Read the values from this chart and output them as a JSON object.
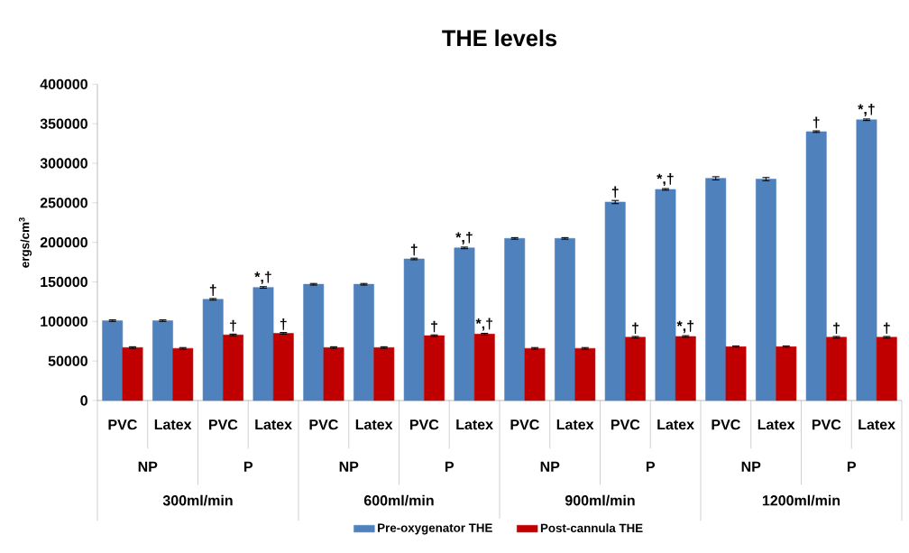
{
  "chart_data": {
    "type": "bar",
    "title": "THE levels",
    "ylabel": "ergs/cm$^{3}$",
    "categories": [
      "PVC",
      "Latex",
      "PVC",
      "Latex",
      "PVC",
      "Latex",
      "PVC",
      "Latex",
      "PVC",
      "Latex",
      "PVC",
      "Latex",
      "PVC",
      "Latex",
      "PVC",
      "Latex"
    ],
    "annotations": [
      "NP",
      "P",
      "NP",
      "P",
      "NP",
      "P",
      "NP",
      "P",
      "300ml/min",
      "600ml/min",
      "900ml/min",
      "1200ml/min"
    ],
    "series": [
      {
        "name": "Pre-oxygenator THE",
        "color": "#4f81bd",
        "values": [
          101000,
          101000,
          128000,
          143000,
          147000,
          147000,
          179000,
          193000,
          205000,
          205000,
          251000,
          267000,
          281000,
          280000,
          340000,
          355000
        ],
        "errors": [
          1000,
          1000,
          1000,
          1000,
          1000,
          1000,
          1000,
          1000,
          1000,
          1000,
          2000,
          1000,
          2000,
          2000,
          1000,
          1000
        ],
        "value_labels": [
          null,
          null,
          "†",
          "*,†",
          null,
          null,
          "†",
          "*,†",
          null,
          null,
          "†",
          "*,†",
          null,
          null,
          "†",
          "*,†"
        ]
      },
      {
        "name": "Post-cannula THE",
        "color": "#c00000",
        "values": [
          67000,
          66000,
          83000,
          85000,
          67000,
          67000,
          82000,
          84000,
          66000,
          66000,
          80000,
          81000,
          68000,
          68000,
          80000,
          80000
        ],
        "errors": [
          1000,
          1000,
          1000,
          1000,
          1000,
          1000,
          1000,
          1000,
          1000,
          1000,
          1000,
          1000,
          1000,
          1000,
          1000,
          1000
        ],
        "value_labels": [
          null,
          null,
          "†",
          "†",
          null,
          null,
          "†",
          "*,†",
          null,
          null,
          "†",
          "*,†",
          null,
          null,
          "†",
          "†"
        ]
      }
    ],
    "ylim": [
      0,
      400000
    ],
    "yticks": [
      0,
      50000,
      100000,
      150000,
      200000,
      250000,
      300000,
      350000,
      400000
    ],
    "legend": "bottom"
  }
}
